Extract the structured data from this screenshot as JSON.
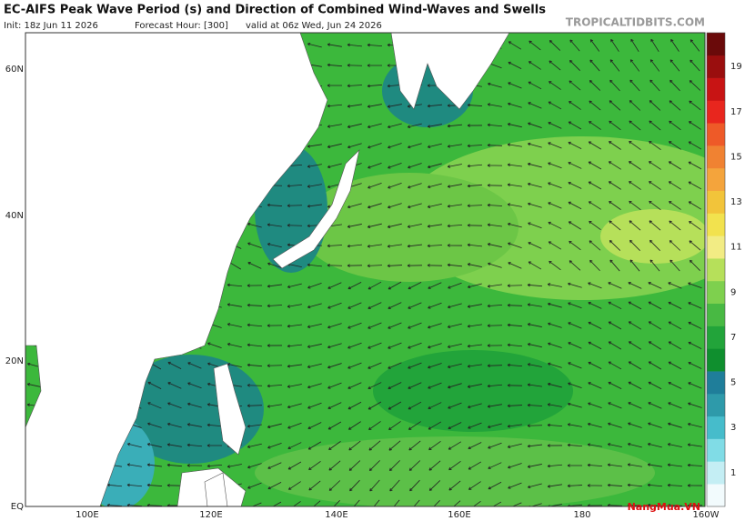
{
  "header": {
    "title": "EC-AIFS Peak Wave Period (s) and Direction of Combined Wind-Waves and Swells",
    "init": "Init: 18z Jun 11 2026",
    "forecast_hour": "Forecast Hour: [300]",
    "valid": "valid at 06z Wed, Jun 24 2026",
    "site": "TROPICALTIDBITS.COM"
  },
  "map": {
    "lat_labels": [
      "60N",
      "40N",
      "20N",
      "EQ"
    ],
    "lon_labels": [
      "100E",
      "120E",
      "140E",
      "160E",
      "180",
      "160W"
    ]
  },
  "colorbar": {
    "labels": [
      19,
      17,
      15,
      13,
      11,
      9,
      7,
      5,
      3,
      1
    ]
  },
  "watermark": "NangMua.VN"
}
